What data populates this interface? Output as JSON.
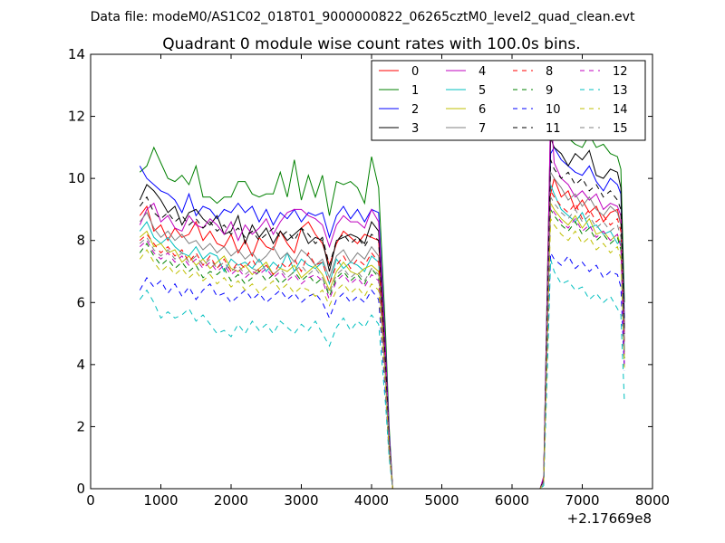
{
  "chart_data": {
    "type": "line",
    "suptitle": "Data file: modeM0/AS1C02_018T01_9000000822_06265cztM0_level2_quad_clean.evt",
    "title": "Quadrant 0 module wise count rates with 100.0s bins.",
    "xlabel": "",
    "ylabel": "",
    "xlim": [
      0,
      8000
    ],
    "ylim": [
      0,
      14
    ],
    "x_ticks": [
      "0",
      "1000",
      "2000",
      "3000",
      "4000",
      "5000",
      "6000",
      "7000",
      "8000"
    ],
    "y_ticks": [
      "0",
      "2",
      "4",
      "6",
      "8",
      "10",
      "12",
      "14"
    ],
    "x_offset_label": "+2.17669e8",
    "legend_position": "upper-right",
    "legend_columns": 4,
    "x": [
      700,
      800,
      900,
      1000,
      1100,
      1200,
      1300,
      1400,
      1500,
      1600,
      1700,
      1800,
      1900,
      2000,
      2100,
      2200,
      2300,
      2400,
      2500,
      2600,
      2700,
      2800,
      2900,
      3000,
      3100,
      3200,
      3300,
      3400,
      3500,
      3600,
      3700,
      3800,
      3900,
      4000,
      4100,
      4200,
      4250,
      4300,
      4350,
      6400,
      6450,
      6500,
      6550,
      6600,
      6700,
      6800,
      6900,
      7000,
      7100,
      7200,
      7300,
      7400,
      7500,
      7550,
      7600
    ],
    "series": [
      {
        "name": "0",
        "color": "#ff0000",
        "dash": "solid",
        "values": [
          8.8,
          9.1,
          8.3,
          8.5,
          8.0,
          8.4,
          8.1,
          8.2,
          8.6,
          8.0,
          8.3,
          7.9,
          7.8,
          8.2,
          7.6,
          8.0,
          7.5,
          8.1,
          7.8,
          7.7,
          8.3,
          7.9,
          7.6,
          8.4,
          8.6,
          8.2,
          7.9,
          7.2,
          7.9,
          8.3,
          8.1,
          7.9,
          8.2,
          8.1,
          8.0,
          4.0,
          1.5,
          0.0,
          0.0,
          0.0,
          0.2,
          5.5,
          9.5,
          10.0,
          9.4,
          9.6,
          9.0,
          9.3,
          8.9,
          9.1,
          8.6,
          8.9,
          9.0,
          8.5,
          5.0
        ]
      },
      {
        "name": "1",
        "color": "#008000",
        "dash": "solid",
        "values": [
          10.2,
          10.4,
          11.0,
          10.5,
          10.0,
          9.9,
          10.1,
          9.8,
          10.4,
          9.4,
          9.4,
          9.2,
          9.4,
          9.4,
          9.9,
          9.9,
          9.5,
          9.4,
          9.5,
          9.5,
          10.2,
          9.4,
          10.6,
          9.3,
          10.1,
          9.4,
          10.1,
          8.8,
          9.9,
          9.8,
          9.9,
          9.7,
          9.2,
          10.7,
          9.7,
          5.0,
          2.0,
          0.0,
          0.0,
          0.0,
          0.3,
          6.5,
          12.0,
          11.6,
          11.3,
          11.3,
          11.1,
          11.0,
          11.4,
          11.0,
          11.1,
          10.8,
          10.7,
          10.3,
          6.0
        ]
      },
      {
        "name": "2",
        "color": "#0000ff",
        "dash": "solid",
        "values": [
          10.4,
          10.0,
          9.8,
          9.6,
          9.5,
          9.3,
          8.9,
          9.5,
          8.8,
          9.1,
          9.0,
          8.7,
          9.0,
          8.9,
          9.2,
          8.9,
          9.1,
          8.6,
          9.0,
          8.5,
          8.9,
          8.7,
          9.0,
          8.6,
          8.9,
          8.8,
          8.9,
          8.1,
          8.8,
          9.1,
          8.7,
          9.0,
          8.6,
          9.0,
          8.9,
          4.5,
          1.8,
          0.0,
          0.0,
          0.0,
          0.3,
          6.0,
          10.8,
          11.0,
          10.6,
          10.4,
          10.2,
          10.1,
          10.4,
          9.9,
          9.6,
          10.0,
          9.8,
          9.5,
          5.5
        ]
      },
      {
        "name": "3",
        "color": "#000000",
        "dash": "solid",
        "values": [
          9.3,
          9.8,
          9.6,
          9.3,
          8.9,
          9.1,
          8.5,
          8.9,
          9.0,
          8.7,
          8.5,
          8.8,
          8.2,
          8.3,
          8.8,
          7.9,
          8.5,
          8.1,
          8.4,
          7.9,
          8.3,
          8.0,
          8.2,
          8.4,
          7.9,
          8.1,
          8.0,
          7.0,
          8.0,
          8.1,
          8.2,
          8.1,
          7.9,
          8.6,
          8.3,
          4.2,
          1.6,
          0.0,
          0.0,
          0.0,
          0.3,
          5.8,
          11.3,
          11.0,
          10.8,
          10.4,
          10.8,
          10.6,
          10.9,
          10.1,
          10.0,
          10.3,
          10.2,
          9.7,
          5.2
        ]
      },
      {
        "name": "4",
        "color": "#bf00bf",
        "dash": "solid",
        "values": [
          8.5,
          9.0,
          9.2,
          8.6,
          8.8,
          8.4,
          8.3,
          8.8,
          8.5,
          8.4,
          8.7,
          8.5,
          8.2,
          8.6,
          8.0,
          8.5,
          8.2,
          8.4,
          8.7,
          8.2,
          8.6,
          8.9,
          9.0,
          9.0,
          8.8,
          8.7,
          8.5,
          7.8,
          8.5,
          8.8,
          8.6,
          8.6,
          8.4,
          9.0,
          8.6,
          4.4,
          1.7,
          0.0,
          0.0,
          0.0,
          0.4,
          6.2,
          12.3,
          10.5,
          10.0,
          9.8,
          9.4,
          9.6,
          9.3,
          9.5,
          9.0,
          9.2,
          9.1,
          8.8,
          5.0
        ]
      },
      {
        "name": "5",
        "color": "#00bfbf",
        "dash": "solid",
        "values": [
          8.3,
          8.6,
          8.1,
          7.9,
          8.1,
          7.8,
          7.6,
          7.5,
          7.8,
          7.4,
          7.6,
          7.5,
          7.0,
          7.4,
          7.2,
          7.3,
          7.1,
          7.4,
          7.0,
          7.3,
          7.1,
          7.6,
          7.0,
          7.4,
          7.2,
          7.1,
          7.3,
          6.6,
          7.4,
          7.1,
          7.3,
          7.2,
          7.0,
          7.5,
          7.3,
          3.6,
          1.4,
          0.0,
          0.0,
          0.0,
          0.2,
          5.0,
          9.8,
          9.5,
          9.0,
          8.8,
          8.6,
          8.9,
          8.4,
          8.5,
          8.2,
          8.3,
          7.9,
          8.0,
          4.5
        ]
      },
      {
        "name": "6",
        "color": "#bfbf00",
        "dash": "solid",
        "values": [
          8.1,
          8.3,
          7.8,
          7.9,
          7.6,
          7.7,
          7.3,
          7.5,
          7.2,
          7.4,
          7.1,
          7.3,
          7.5,
          7.1,
          7.0,
          7.2,
          6.9,
          7.1,
          7.3,
          6.9,
          7.1,
          7.0,
          7.2,
          6.8,
          7.0,
          7.2,
          6.9,
          6.4,
          7.0,
          7.3,
          7.0,
          6.9,
          7.1,
          7.2,
          7.0,
          3.5,
          1.3,
          0.0,
          0.0,
          0.0,
          0.2,
          4.8,
          9.2,
          9.0,
          8.7,
          8.5,
          8.8,
          8.4,
          8.7,
          8.2,
          8.3,
          8.0,
          8.2,
          7.8,
          4.3
        ]
      },
      {
        "name": "7",
        "color": "#808080",
        "dash": "solid",
        "values": [
          8.6,
          8.9,
          8.4,
          8.1,
          8.3,
          8.0,
          8.2,
          7.9,
          8.0,
          7.7,
          7.9,
          7.6,
          7.8,
          7.5,
          7.7,
          7.4,
          7.6,
          7.3,
          7.5,
          7.8,
          7.4,
          7.6,
          7.3,
          7.7,
          7.5,
          7.2,
          7.4,
          6.8,
          7.5,
          7.7,
          7.3,
          7.6,
          7.4,
          7.8,
          7.5,
          3.8,
          1.5,
          0.0,
          0.0,
          0.0,
          0.2,
          5.4,
          10.2,
          10.0,
          9.7,
          9.3,
          9.5,
          9.1,
          9.4,
          9.0,
          8.8,
          9.1,
          8.9,
          8.5,
          4.8
        ]
      },
      {
        "name": "8",
        "color": "#ff0000",
        "dash": "dashed",
        "values": [
          8.0,
          8.2,
          7.9,
          7.6,
          7.8,
          7.5,
          7.7,
          7.3,
          7.6,
          7.2,
          7.5,
          7.1,
          7.4,
          7.0,
          7.3,
          7.1,
          7.4,
          7.0,
          7.2,
          6.9,
          7.3,
          7.1,
          7.4,
          7.0,
          7.6,
          7.2,
          7.3,
          6.6,
          7.2,
          7.5,
          7.1,
          7.4,
          7.2,
          7.6,
          7.3,
          3.7,
          1.4,
          0.0,
          0.0,
          0.0,
          0.2,
          5.1,
          9.6,
          9.4,
          9.1,
          8.9,
          9.2,
          8.7,
          9.0,
          8.6,
          8.8,
          8.5,
          8.7,
          8.3,
          4.6
        ]
      },
      {
        "name": "9",
        "color": "#008000",
        "dash": "dashed",
        "values": [
          7.6,
          7.9,
          7.5,
          7.2,
          7.4,
          7.1,
          7.3,
          7.0,
          7.2,
          6.8,
          7.0,
          6.9,
          7.1,
          6.7,
          6.9,
          6.6,
          6.8,
          7.0,
          6.7,
          6.9,
          6.6,
          6.8,
          7.0,
          6.7,
          6.9,
          6.6,
          6.8,
          6.2,
          6.8,
          7.0,
          6.7,
          6.9,
          6.6,
          7.1,
          6.8,
          3.4,
          1.3,
          0.0,
          0.0,
          0.0,
          0.2,
          4.7,
          9.0,
          8.8,
          8.5,
          8.3,
          8.6,
          8.2,
          8.4,
          8.0,
          8.2,
          7.9,
          8.1,
          7.7,
          4.2
        ]
      },
      {
        "name": "10",
        "color": "#0000ff",
        "dash": "dashed",
        "values": [
          6.4,
          6.8,
          6.5,
          6.7,
          6.3,
          6.6,
          6.2,
          6.5,
          6.1,
          6.4,
          6.6,
          6.2,
          6.3,
          6.0,
          6.2,
          6.4,
          6.1,
          6.3,
          6.0,
          6.2,
          6.4,
          6.1,
          6.3,
          6.0,
          6.2,
          6.3,
          6.0,
          5.5,
          6.1,
          6.3,
          6.0,
          6.2,
          6.0,
          6.4,
          6.1,
          3.0,
          1.1,
          0.0,
          0.0,
          0.0,
          0.2,
          4.2,
          7.6,
          7.4,
          7.2,
          7.5,
          7.1,
          7.3,
          7.0,
          7.2,
          6.8,
          7.0,
          6.9,
          6.5,
          3.8
        ]
      },
      {
        "name": "11",
        "color": "#000000",
        "dash": "dashed",
        "values": [
          9.1,
          9.4,
          8.9,
          8.7,
          8.9,
          8.6,
          8.8,
          8.5,
          8.7,
          8.4,
          8.6,
          8.3,
          8.5,
          8.2,
          8.4,
          8.1,
          8.3,
          8.0,
          8.2,
          8.4,
          8.1,
          8.3,
          8.0,
          8.4,
          8.2,
          7.9,
          8.1,
          7.2,
          8.0,
          8.2,
          7.9,
          8.1,
          7.8,
          8.2,
          8.0,
          4.0,
          1.5,
          0.0,
          0.0,
          0.0,
          0.3,
          5.6,
          10.6,
          10.3,
          10.0,
          10.2,
          9.8,
          10.0,
          9.6,
          9.8,
          9.4,
          9.6,
          9.3,
          9.0,
          5.0
        ]
      },
      {
        "name": "12",
        "color": "#bf00bf",
        "dash": "dashed",
        "values": [
          7.8,
          8.0,
          7.6,
          7.4,
          7.6,
          7.3,
          7.5,
          7.2,
          7.4,
          7.1,
          7.3,
          7.0,
          7.2,
          6.9,
          7.1,
          6.8,
          7.0,
          6.9,
          7.1,
          6.8,
          7.0,
          6.7,
          6.9,
          6.6,
          6.8,
          6.9,
          6.7,
          6.1,
          6.7,
          6.9,
          6.6,
          6.8,
          6.5,
          6.9,
          6.7,
          3.4,
          1.3,
          0.0,
          0.0,
          0.0,
          0.2,
          4.6,
          9.1,
          8.9,
          8.6,
          8.4,
          8.7,
          8.3,
          8.5,
          8.1,
          8.3,
          8.0,
          8.2,
          7.8,
          4.0
        ]
      },
      {
        "name": "13",
        "color": "#00bfbf",
        "dash": "dashed",
        "values": [
          6.1,
          6.4,
          6.0,
          5.5,
          5.7,
          5.5,
          5.6,
          5.8,
          5.4,
          5.6,
          5.3,
          5.0,
          5.1,
          4.9,
          5.3,
          5.0,
          5.4,
          5.1,
          5.3,
          5.0,
          5.4,
          5.2,
          5.0,
          5.3,
          5.1,
          5.4,
          5.0,
          4.6,
          5.2,
          5.5,
          5.1,
          5.4,
          5.2,
          5.6,
          5.3,
          2.7,
          1.0,
          0.0,
          0.0,
          0.0,
          0.1,
          3.6,
          7.4,
          7.0,
          6.6,
          6.7,
          6.4,
          6.5,
          6.1,
          6.3,
          6.0,
          6.2,
          5.8,
          5.6,
          2.8
        ]
      },
      {
        "name": "14",
        "color": "#bfbf00",
        "dash": "dashed",
        "values": [
          7.4,
          7.7,
          7.3,
          7.0,
          7.2,
          6.9,
          7.1,
          6.8,
          7.0,
          6.7,
          6.9,
          6.6,
          6.8,
          6.5,
          6.7,
          6.4,
          6.6,
          6.3,
          6.5,
          6.7,
          6.4,
          6.6,
          6.3,
          6.5,
          6.4,
          6.2,
          6.4,
          5.9,
          6.4,
          6.6,
          6.3,
          6.5,
          6.2,
          6.6,
          6.4,
          3.2,
          1.2,
          0.0,
          0.0,
          0.0,
          0.2,
          4.4,
          8.7,
          8.5,
          8.2,
          8.0,
          8.3,
          7.9,
          8.1,
          7.7,
          7.9,
          7.6,
          7.8,
          7.4,
          3.9
        ]
      },
      {
        "name": "15",
        "color": "#808080",
        "dash": "dashed",
        "values": [
          7.9,
          8.1,
          7.7,
          7.5,
          7.7,
          7.4,
          7.6,
          7.3,
          7.5,
          7.2,
          7.4,
          7.1,
          7.3,
          7.0,
          7.2,
          6.9,
          7.1,
          7.0,
          7.2,
          6.9,
          7.1,
          6.8,
          7.0,
          7.2,
          6.9,
          7.1,
          6.8,
          6.3,
          6.9,
          7.1,
          6.8,
          7.0,
          6.7,
          7.1,
          6.9,
          3.5,
          1.3,
          0.0,
          0.0,
          0.0,
          0.2,
          4.9,
          9.4,
          9.2,
          8.9,
          8.7,
          9.0,
          8.6,
          8.8,
          8.4,
          8.6,
          8.3,
          8.5,
          8.1,
          4.4
        ]
      }
    ]
  }
}
